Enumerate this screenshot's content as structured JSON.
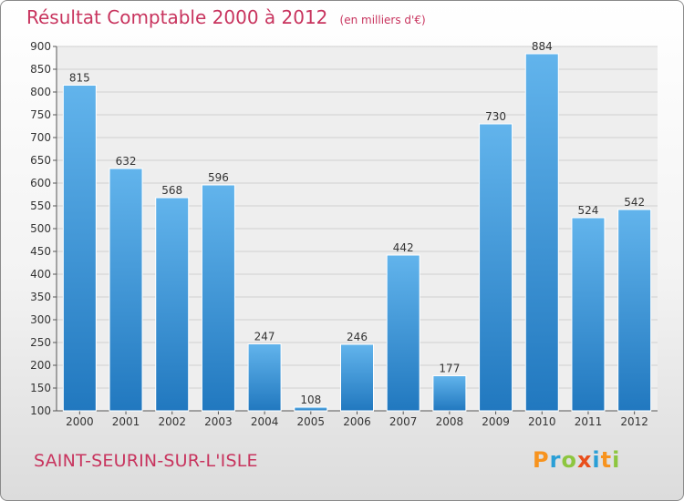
{
  "chart_data": {
    "type": "bar",
    "title": "Résultat Comptable 2000 à 2012",
    "subtitle": "(en milliers d'€)",
    "categories": [
      "2000",
      "2001",
      "2002",
      "2003",
      "2004",
      "2005",
      "2006",
      "2007",
      "2008",
      "2009",
      "2010",
      "2011",
      "2012"
    ],
    "values": [
      815,
      632,
      568,
      596,
      247,
      108,
      246,
      442,
      177,
      730,
      884,
      524,
      542
    ],
    "ylim": [
      100,
      900
    ],
    "yticks": [
      100,
      150,
      200,
      250,
      300,
      350,
      400,
      450,
      500,
      550,
      600,
      650,
      700,
      750,
      800,
      850,
      900
    ],
    "xlabel": "",
    "ylabel": "",
    "grid": true
  },
  "commune": "SAINT-SEURIN-SUR-L'ISLE",
  "logo": {
    "text": "Proxiti",
    "letters": [
      "P",
      "r",
      "o",
      "x",
      "i",
      "t",
      "i"
    ],
    "colors": [
      "#f7931e",
      "#2a9fd6",
      "#8dc63f",
      "#e94e1b",
      "#2a9fd6",
      "#f7931e",
      "#8dc63f"
    ]
  },
  "colors": {
    "bar_light": "#62b4ec",
    "bar_dark": "#2178bf",
    "title": "#c8345e",
    "grid": "#d0d0d0"
  }
}
